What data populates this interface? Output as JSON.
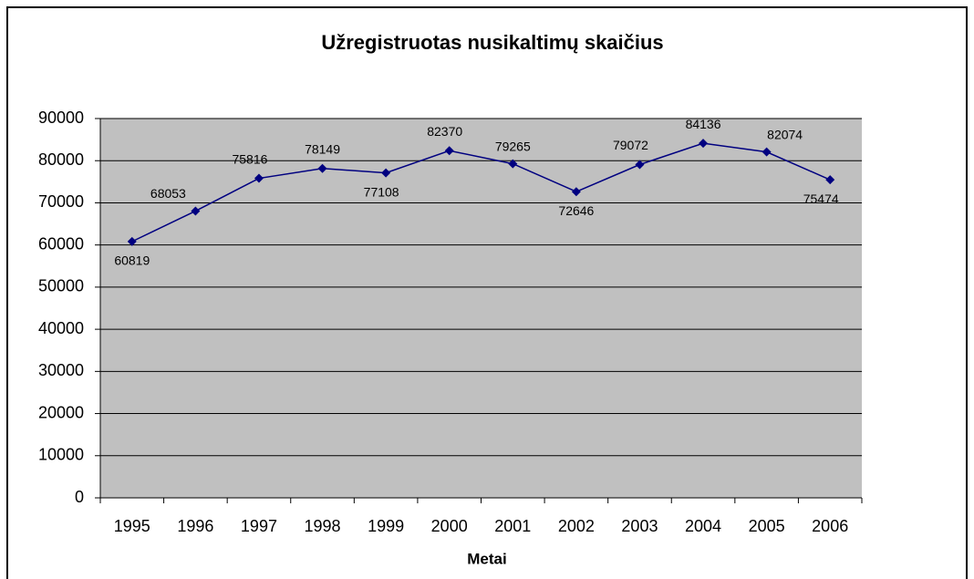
{
  "chart_data": {
    "type": "line",
    "title": "Užregistruotas nusikaltimų skaičius",
    "x_label": "Metai",
    "categories": [
      "1995",
      "1996",
      "1997",
      "1998",
      "1999",
      "2000",
      "2001",
      "2002",
      "2003",
      "2004",
      "2005",
      "2006"
    ],
    "values": [
      60819,
      68053,
      75816,
      78149,
      77108,
      82370,
      79265,
      72646,
      79072,
      84136,
      82074,
      75474
    ],
    "color": "#000080",
    "ylim": [
      0,
      90000
    ],
    "yticks": [
      0,
      10000,
      20000,
      30000,
      40000,
      50000,
      60000,
      70000,
      80000,
      90000
    ],
    "grid": true
  }
}
